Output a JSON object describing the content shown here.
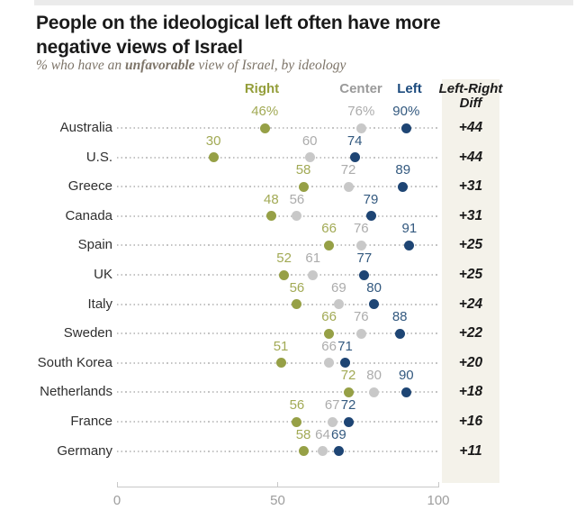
{
  "header": {
    "title_line1": "People on the ideological left often have more",
    "title_line2": "negative views of Israel",
    "subtitle_prefix": "% who have an ",
    "subtitle_bold": "unfavorable",
    "subtitle_suffix": " view of Israel, by ideology"
  },
  "legend": {
    "right_label": "Right",
    "center_label": "Center",
    "left_label": "Left",
    "diff_header_line1": "Left-Right",
    "diff_header_line2": "Diff"
  },
  "chart_data": {
    "type": "scatter",
    "subtype": "dot-plot",
    "title": "People on the ideological left often have more negative views of Israel",
    "subtitle": "% who have an unfavorable view of Israel, by ideology",
    "categories": [
      "Australia",
      "U.S.",
      "Greece",
      "Canada",
      "Spain",
      "UK",
      "Italy",
      "Sweden",
      "South Korea",
      "Netherlands",
      "France",
      "Germany"
    ],
    "series": [
      {
        "name": "Right",
        "values": [
          46,
          30,
          58,
          48,
          66,
          52,
          56,
          66,
          51,
          72,
          56,
          58
        ],
        "labels": [
          "46%",
          "30",
          "58",
          "48",
          "66",
          "52",
          "56",
          "66",
          "51",
          "72",
          "56",
          "58"
        ]
      },
      {
        "name": "Center",
        "values": [
          76,
          60,
          72,
          56,
          76,
          61,
          69,
          76,
          66,
          80,
          67,
          64
        ],
        "labels": [
          "76%",
          "60",
          "72",
          "56",
          "76",
          "61",
          "69",
          "76",
          "66",
          "80",
          "67",
          "64"
        ]
      },
      {
        "name": "Left",
        "values": [
          90,
          74,
          89,
          79,
          91,
          77,
          80,
          88,
          71,
          90,
          72,
          69
        ],
        "labels": [
          "90%",
          "74",
          "89",
          "79",
          "91",
          "77",
          "80",
          "88",
          "71",
          "90",
          "72",
          "69"
        ]
      }
    ],
    "diff_labels": [
      "+44",
      "+44",
      "+31",
      "+31",
      "+25",
      "+25",
      "+24",
      "+22",
      "+20",
      "+18",
      "+16",
      "+11"
    ],
    "xlim": [
      0,
      100
    ],
    "axis_ticks": [
      {
        "label": "0",
        "value": 0
      },
      {
        "label": "50",
        "value": 50
      },
      {
        "label": "100",
        "value": 100
      }
    ],
    "grid": "none",
    "legend_position": "top"
  },
  "colors": {
    "title_text": "#1a1a1a",
    "subtitle_text": "#7d7468",
    "country_text": "#2f2f2f",
    "right_header": "#949e3a",
    "right_dot": "#96a046",
    "right_label": "#a2aa55",
    "center_header": "#9a9a9a",
    "center_dot": "#c8c8c8",
    "center_label": "#acacac",
    "left_header": "#1b4a7d",
    "left_dot": "#1e4574",
    "left_label": "#33597f",
    "diff_text": "#1a1a1a",
    "panel_bg": "#f4f2ea",
    "leader_line": "#c4c4c4",
    "axis_line": "#c8c8c8",
    "axis_text": "#9d9d9d"
  }
}
